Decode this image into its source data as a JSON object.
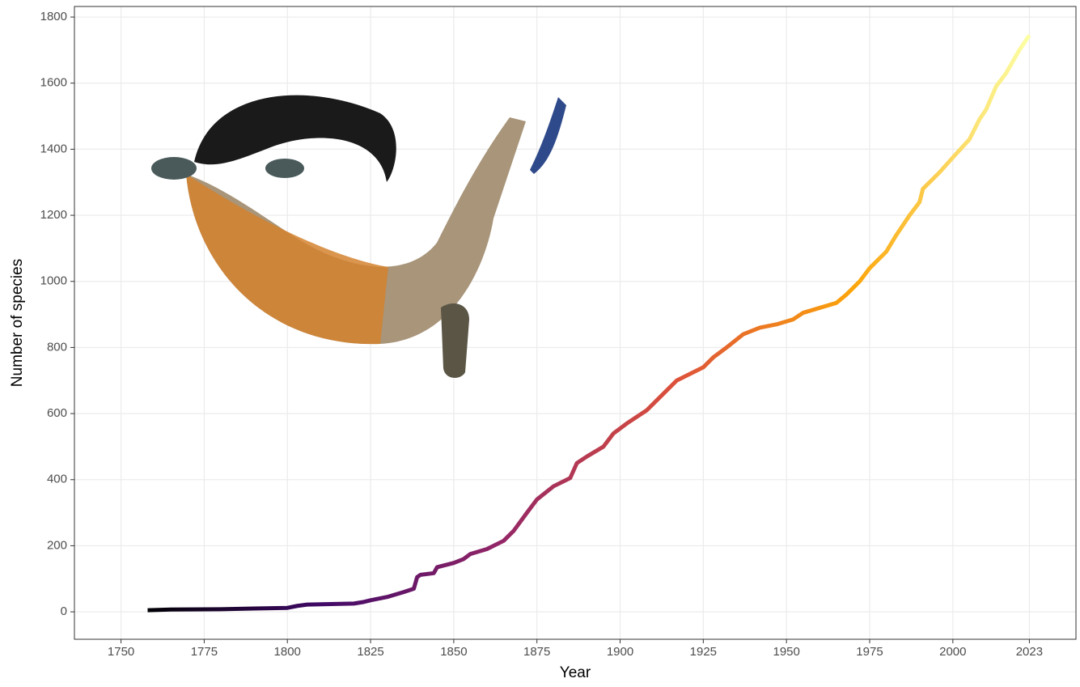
{
  "chart_data": {
    "type": "line",
    "x_label": "Year",
    "y_label": "Number of species",
    "x": [
      1758,
      1765,
      1780,
      1790,
      1800,
      1803,
      1806,
      1820,
      1823,
      1825,
      1830,
      1835,
      1838,
      1839,
      1840,
      1844,
      1845,
      1850,
      1853,
      1855,
      1860,
      1865,
      1868,
      1872,
      1875,
      1880,
      1885,
      1887,
      1890,
      1895,
      1898,
      1902,
      1908,
      1912,
      1917,
      1920,
      1925,
      1928,
      1932,
      1937,
      1942,
      1947,
      1952,
      1955,
      1960,
      1965,
      1968,
      1972,
      1975,
      1980,
      1983,
      1987,
      1990,
      1991,
      1996,
      2000,
      2005,
      2008,
      2010,
      2013,
      2016,
      2020,
      2023
    ],
    "values": [
      5,
      7,
      8,
      10,
      12,
      18,
      22,
      25,
      30,
      35,
      45,
      60,
      70,
      105,
      112,
      117,
      135,
      148,
      160,
      175,
      190,
      215,
      245,
      300,
      340,
      380,
      405,
      450,
      470,
      500,
      540,
      570,
      610,
      650,
      700,
      715,
      740,
      770,
      800,
      840,
      860,
      870,
      885,
      905,
      920,
      935,
      960,
      1000,
      1040,
      1090,
      1140,
      1200,
      1240,
      1280,
      1330,
      1375,
      1430,
      1490,
      1520,
      1590,
      1630,
      1700,
      1745
    ],
    "color_scale": [
      "#000004",
      "#420a68",
      "#932667",
      "#dd513a",
      "#fca50a",
      "#fcffa4"
    ],
    "xlim": [
      1736,
      2037
    ],
    "ylim": [
      -83,
      1832
    ],
    "xticks": [
      1750,
      1775,
      1800,
      1825,
      1850,
      1875,
      1900,
      1925,
      1950,
      1975,
      2000,
      2023
    ],
    "yticks": [
      0,
      200,
      400,
      600,
      800,
      1000,
      1200,
      1400,
      1600,
      1800
    ],
    "grid": true
  }
}
